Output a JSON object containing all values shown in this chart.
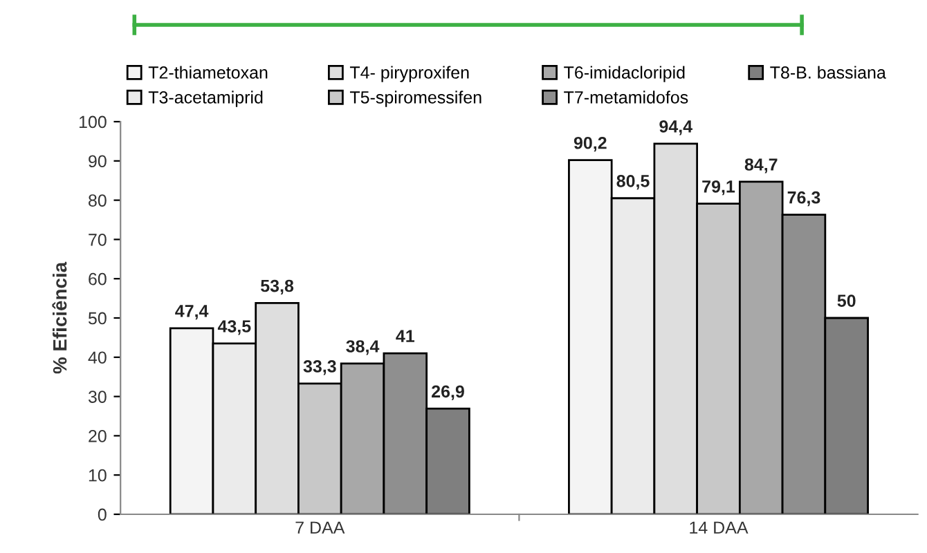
{
  "chart_data": {
    "type": "bar",
    "ylabel": "% Eficiência",
    "categories": [
      "7 DAA",
      "14 DAA"
    ],
    "series": [
      {
        "name": "T2-thiametoxan",
        "color": "#f4f4f4",
        "values": [
          47.4,
          90.2
        ],
        "value_labels": [
          "47,4",
          "90,2"
        ]
      },
      {
        "name": "T3-acetamiprid",
        "color": "#ebebeb",
        "values": [
          43.5,
          80.5
        ],
        "value_labels": [
          "43,5",
          "80,5"
        ]
      },
      {
        "name": "T4- piryproxifen",
        "color": "#dedede",
        "values": [
          53.8,
          94.4
        ],
        "value_labels": [
          "53,8",
          "94,4"
        ]
      },
      {
        "name": "T5-spiromessifen",
        "color": "#c8c8c8",
        "values": [
          33.3,
          79.1
        ],
        "value_labels": [
          "33,3",
          "79,1"
        ]
      },
      {
        "name": "T6-imidacloripid",
        "color": "#a8a8a8",
        "values": [
          38.4,
          84.7
        ],
        "value_labels": [
          "38,4",
          "84,7"
        ]
      },
      {
        "name": "T7-metamidofos",
        "color": "#8f8f8f",
        "values": [
          41,
          76.3
        ],
        "value_labels": [
          "41",
          "76,3"
        ]
      },
      {
        "name": "T8-B. bassiana",
        "color": "#7f7f7f",
        "values": [
          26.9,
          50
        ],
        "value_labels": [
          "26,9",
          "50"
        ]
      }
    ],
    "ylim": [
      0,
      100
    ],
    "yticks": [
      0,
      10,
      20,
      30,
      40,
      50,
      60,
      70,
      80,
      90,
      100
    ],
    "grid": false,
    "legend": "top"
  }
}
